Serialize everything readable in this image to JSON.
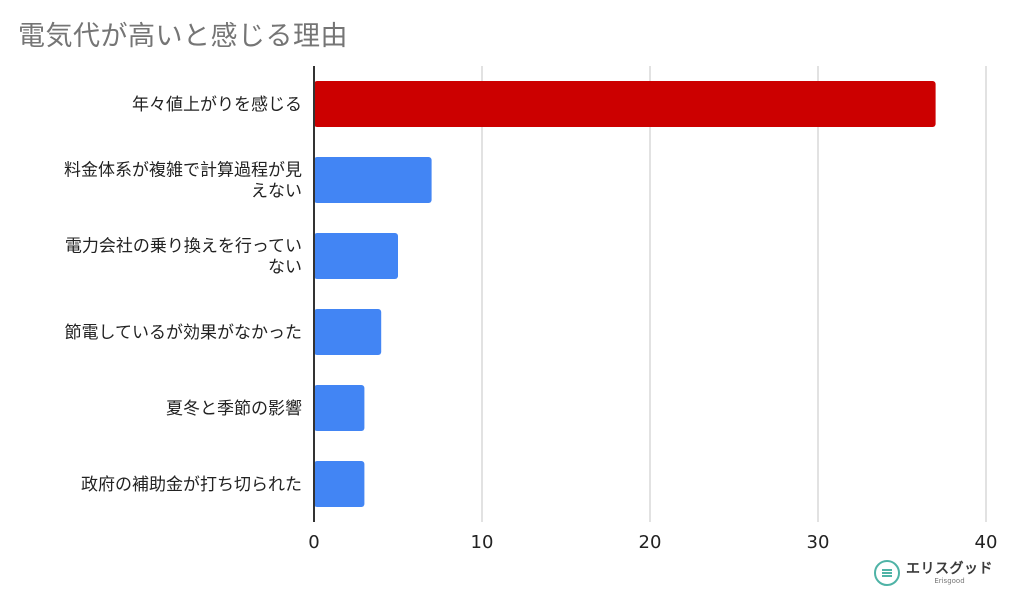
{
  "chart_data": {
    "type": "bar",
    "orientation": "horizontal",
    "title": "電気代が高いと感じる理由",
    "categories": [
      [
        "年々値上がりを感じる"
      ],
      [
        "料金体系が複雑で計算過程が見",
        "えない"
      ],
      [
        "電力会社の乗り換えを行ってい",
        "ない"
      ],
      [
        "節電しているが効果がなかった"
      ],
      [
        "夏冬と季節の影響"
      ],
      [
        "政府の補助金が打ち切られた"
      ]
    ],
    "values": [
      37,
      7,
      5,
      4,
      3,
      3
    ],
    "xlim": [
      0,
      40
    ],
    "xticks": [
      0,
      10,
      20,
      30,
      40
    ],
    "grid": true,
    "colors": {
      "highlight": "#cc0000",
      "default": "#4285f4",
      "grid": "#d9d9d9",
      "axis": "#333333"
    },
    "highlight_index": 0
  },
  "logo": {
    "name": "エリスグッド",
    "sub": "Erisgood"
  }
}
